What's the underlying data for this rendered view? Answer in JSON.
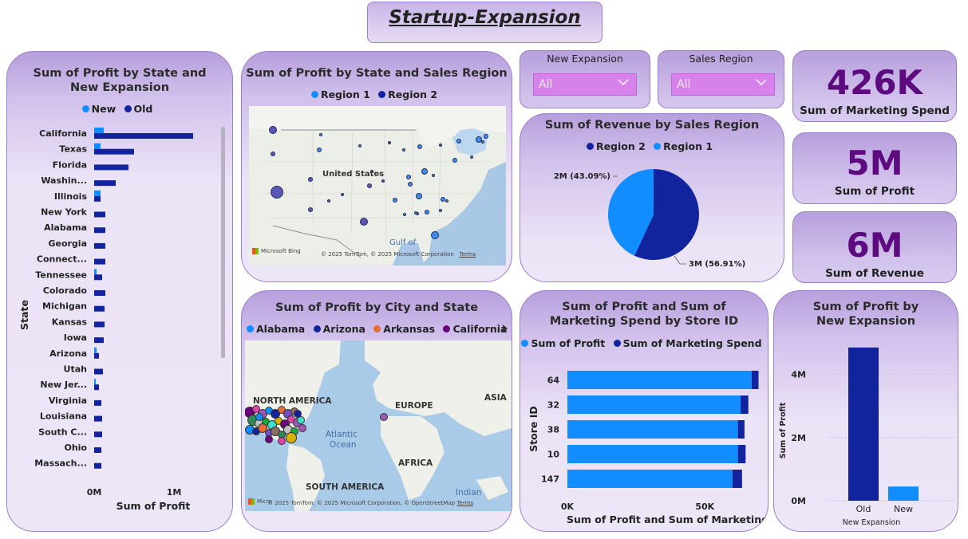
{
  "page_title": "Startup-Expansion",
  "state_chart": {
    "title": "Sum of Profit by State and New Expansion",
    "legend": [
      {
        "name": "New",
        "color": "#118dff"
      },
      {
        "name": "Old",
        "color": "#12239e"
      }
    ],
    "chart_data": {
      "type": "bar",
      "orientation": "horizontal",
      "categories": [
        "California",
        "Texas",
        "Florida",
        "Washin...",
        "Illinois",
        "New York",
        "Alabama",
        "Georgia",
        "Connect...",
        "Tennessee",
        "Colorado",
        "Michigan",
        "Kansas",
        "Iowa",
        "Arizona",
        "Utah",
        "New Jer...",
        "Virginia",
        "Louisiana",
        "South C...",
        "Ohio",
        "Massach..."
      ],
      "series": [
        {
          "name": "New",
          "values": [
            0.12,
            0.08,
            0,
            0,
            0.08,
            0,
            0,
            0,
            0,
            0.03,
            0,
            0,
            0,
            0,
            0.03,
            0,
            0.02,
            0,
            0,
            0,
            0,
            0
          ]
        },
        {
          "name": "Old",
          "values": [
            1.24,
            0.5,
            0.43,
            0.27,
            0.08,
            0.14,
            0.14,
            0.14,
            0.14,
            0.1,
            0.14,
            0.13,
            0.13,
            0.12,
            0.06,
            0.11,
            0.06,
            0.09,
            0.1,
            0.1,
            0.09,
            0.09
          ]
        }
      ],
      "xlabel": "Sum of Profit",
      "ylabel": "State",
      "xticks": [
        "0M",
        "1M"
      ],
      "xlim": [
        0,
        1.4
      ]
    }
  },
  "region_map": {
    "title": "Sum of Profit by State and Sales Region",
    "legend": [
      {
        "name": "Region 1",
        "color": "#118dff"
      },
      {
        "name": "Region 2",
        "color": "#12239e"
      }
    ],
    "labels": {
      "country": "United States",
      "gulf": "Gulf of"
    },
    "credit": "© 2025 TomTom, © 2025 Microsoft Corporation",
    "terms": "Terms",
    "brand": "Microsoft Bing"
  },
  "city_map": {
    "title": "Sum of Profit by City and State",
    "legend": [
      {
        "name": "Alabama",
        "color": "#118dff"
      },
      {
        "name": "Arizona",
        "color": "#12239e"
      },
      {
        "name": "Arkansas",
        "color": "#e66c37"
      },
      {
        "name": "California",
        "color": "#6b007b"
      }
    ],
    "labels": {
      "na": "NORTH AMERICA",
      "europe": "EUROPE",
      "asia": "ASIA",
      "atlantic1": "Atlantic",
      "atlantic2": "Ocean",
      "africa": "AFRICA",
      "sa": "SOUTH AMERICA",
      "indian": "Indian"
    },
    "credit": "© 2025 TomTom, © 2025 Microsoft Corporation, © OpenStreetMap",
    "terms": "Terms",
    "brand": "Micro"
  },
  "slicers": {
    "expansion": {
      "label": "New Expansion",
      "value": "All"
    },
    "region": {
      "label": "Sales Region",
      "value": "All"
    }
  },
  "pie": {
    "title": "Sum of Revenue by Sales Region",
    "legend": [
      {
        "name": "Region 2",
        "color": "#12239e"
      },
      {
        "name": "Region 1",
        "color": "#118dff"
      }
    ],
    "chart_data": {
      "type": "pie",
      "slices": [
        {
          "name": "Region 2",
          "value": 3,
          "share": 56.91,
          "label": "3M (56.91%)",
          "color": "#12239e"
        },
        {
          "name": "Region 1",
          "value": 2,
          "share": 43.09,
          "label": "2M (43.09%)",
          "color": "#118dff"
        }
      ]
    }
  },
  "kpis": [
    {
      "value": "426K",
      "label": "Sum of Marketing Spend"
    },
    {
      "value": "5M",
      "label": "Sum of Profit"
    },
    {
      "value": "6M",
      "label": "Sum of Revenue"
    }
  ],
  "store_chart": {
    "title": "Sum of Profit and Sum of Marketing Spend by Store ID",
    "legend": [
      {
        "name": "Sum of Profit",
        "color": "#118dff"
      },
      {
        "name": "Sum of Marketing Spend",
        "color": "#12239e"
      }
    ],
    "chart_data": {
      "type": "bar",
      "orientation": "horizontal",
      "stacked": true,
      "categories": [
        "64",
        "32",
        "38",
        "10",
        "147"
      ],
      "series": [
        {
          "name": "Sum of Profit",
          "values": [
            67000,
            63000,
            62000,
            62000,
            60000
          ]
        },
        {
          "name": "Sum of Marketing Spend",
          "values": [
            2500,
            2800,
            2400,
            2800,
            3500
          ]
        }
      ],
      "xlabel": "Sum of Profit and Sum of Marketing S...",
      "ylabel": "Store ID",
      "xticks": [
        "0K",
        "50K"
      ],
      "xlim": [
        0,
        74000
      ]
    }
  },
  "expansion_chart": {
    "title": "Sum of Profit by New Expansion",
    "chart_data": {
      "type": "bar",
      "categories": [
        "Old",
        "New"
      ],
      "values": [
        4.85,
        0.45
      ],
      "colors": [
        "#12239e",
        "#118dff"
      ],
      "xlabel": "New Expansion",
      "ylabel": "Sum of Profit",
      "yticks": [
        "0M",
        "2M",
        "4M"
      ],
      "ylim": [
        0,
        5.3
      ]
    }
  }
}
